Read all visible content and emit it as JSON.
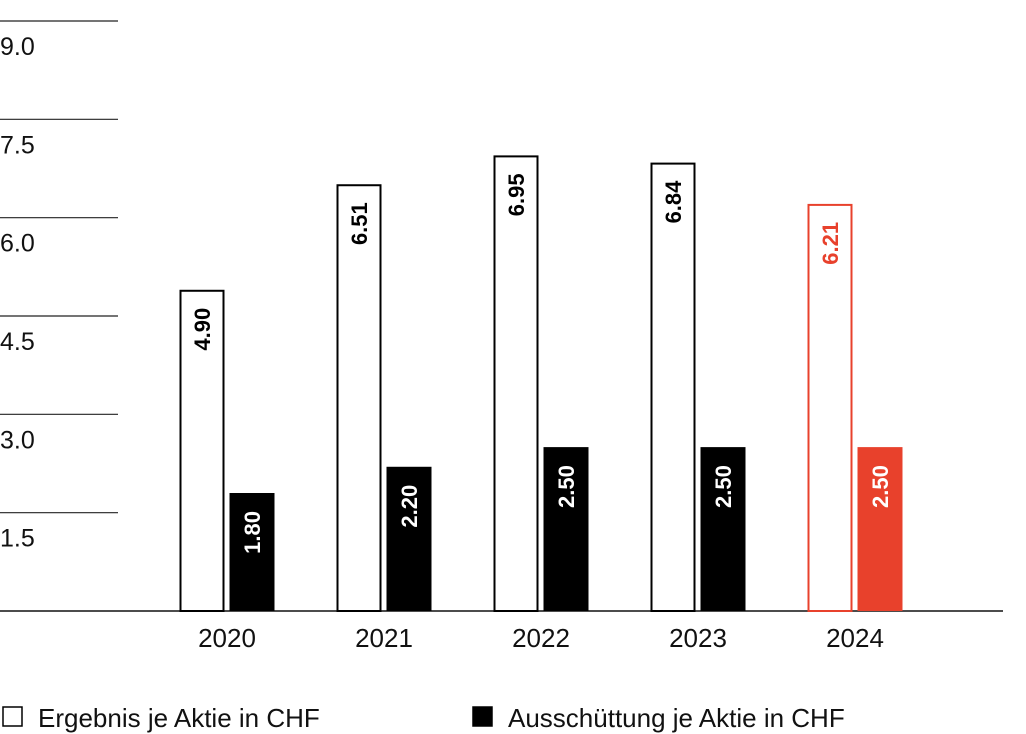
{
  "chart_data": {
    "type": "bar",
    "categories": [
      "2020",
      "2021",
      "2022",
      "2023",
      "2024"
    ],
    "series": [
      {
        "name": "Ergebnis je Aktie in CHF",
        "style": "outline",
        "colors": [
          "#000000",
          "#000000",
          "#000000",
          "#000000",
          "#e8412c"
        ],
        "values": [
          4.9,
          6.51,
          6.95,
          6.84,
          6.21
        ],
        "value_labels": [
          "4.90",
          "6.51",
          "6.95",
          "6.84",
          "6.21"
        ]
      },
      {
        "name": "Ausschüttung je Aktie in CHF",
        "style": "filled",
        "colors": [
          "#000000",
          "#000000",
          "#000000",
          "#000000",
          "#e8412c"
        ],
        "values": [
          1.8,
          2.2,
          2.5,
          2.5,
          2.5
        ],
        "value_labels": [
          "1.80",
          "2.20",
          "2.50",
          "2.50",
          "2.50"
        ]
      }
    ],
    "ylim": [
      0,
      9
    ],
    "yticks": [
      {
        "value": 1.5,
        "label": "1.5"
      },
      {
        "value": 3,
        "label": "3.0"
      },
      {
        "value": 4.5,
        "label": "4.5"
      },
      {
        "value": 6,
        "label": "6.0"
      },
      {
        "value": 7.5,
        "label": "7.5"
      },
      {
        "value": 9,
        "label": "9.0"
      }
    ],
    "grid": true,
    "legend": "bottom"
  }
}
